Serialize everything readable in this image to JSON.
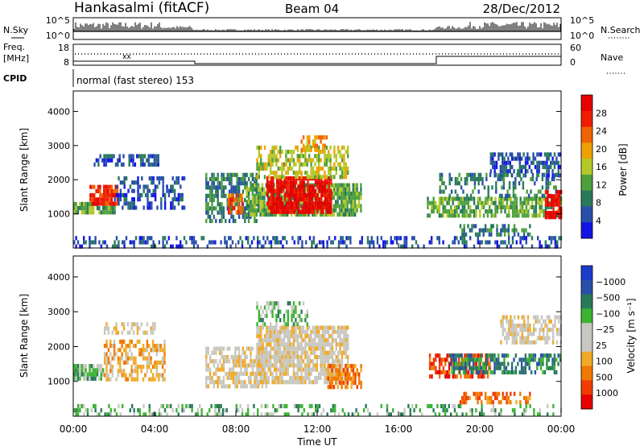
{
  "header": {
    "station": "Hankasalmi (fitACF)",
    "beam": "Beam 04",
    "date": "28/Dec/2012"
  },
  "strips": {
    "nsky_label": "N.Sky",
    "nsearch_label": "N.Search",
    "noise_ticks": [
      "10^5",
      "10^0"
    ],
    "freq_label": "Freq.",
    "freq_unit": "[MHz]",
    "freq_ticks": [
      "18",
      "8"
    ],
    "nave_label": "Nave",
    "nave_ticks": [
      "60",
      "0"
    ],
    "cpid_label": "CPID",
    "cpid_text": "normal (fast stereo) 153"
  },
  "colors": {
    "power": [
      "#1414e6",
      "#2850aa",
      "#287a5a",
      "#4ea03c",
      "#b4c828",
      "#f0a000",
      "#f06400",
      "#f01e00",
      "#e60000"
    ],
    "velocity": [
      "#e60000",
      "#f03c00",
      "#f07800",
      "#f0aa28",
      "#c8c8c0",
      "#c8c8c0",
      "#3cb432",
      "#2a7a5a",
      "#2850aa",
      "#1a3ccc"
    ]
  },
  "chart_data": [
    {
      "type": "heatmap",
      "panel": "power",
      "ylabel": "Slant Range [km]",
      "colorbar_label": "Power [dB]",
      "yticks": [
        "1000",
        "2000",
        "3000",
        "4000"
      ],
      "colorbar_ticks": [
        "4",
        "8",
        "12",
        "16",
        "20",
        "24",
        "28"
      ],
      "ylim": [
        0,
        4600
      ],
      "xlim_hours": [
        0,
        24
      ],
      "regions": [
        {
          "t": [
            0.0,
            2.0
          ],
          "r": [
            1050,
            1350
          ],
          "v": 3,
          "fill": 0.85
        },
        {
          "t": [
            0.8,
            2.2
          ],
          "r": [
            1350,
            1850
          ],
          "v": 7,
          "fill": 0.85
        },
        {
          "t": [
            2.0,
            5.5
          ],
          "r": [
            1200,
            2100
          ],
          "v": 1,
          "fill": 0.5
        },
        {
          "t": [
            1.0,
            4.2
          ],
          "r": [
            2400,
            2750
          ],
          "v": 1,
          "fill": 0.6
        },
        {
          "t": [
            6.5,
            9.0
          ],
          "r": [
            800,
            2200
          ],
          "v": 2,
          "fill": 0.7
        },
        {
          "t": [
            7.6,
            8.3
          ],
          "r": [
            1000,
            1600
          ],
          "v": 6,
          "fill": 0.8
        },
        {
          "t": [
            8.5,
            14.2
          ],
          "r": [
            1000,
            1900
          ],
          "v": 3,
          "fill": 0.8
        },
        {
          "t": [
            9.5,
            12.7
          ],
          "r": [
            1100,
            2100
          ],
          "v": 8,
          "fill": 0.85
        },
        {
          "t": [
            9.0,
            13.5
          ],
          "r": [
            2100,
            3000
          ],
          "v": 4,
          "fill": 0.6
        },
        {
          "t": [
            11.0,
            12.5
          ],
          "r": [
            2900,
            3300
          ],
          "v": 5,
          "fill": 0.5
        },
        {
          "t": [
            17.4,
            24.0
          ],
          "r": [
            1000,
            1500
          ],
          "v": 3,
          "fill": 0.7
        },
        {
          "t": [
            18.0,
            23.8
          ],
          "r": [
            1500,
            2200
          ],
          "v": 2,
          "fill": 0.4
        },
        {
          "t": [
            20.5,
            24.0
          ],
          "r": [
            2100,
            2800
          ],
          "v": 1,
          "fill": 0.6
        },
        {
          "t": [
            23.2,
            24.0
          ],
          "r": [
            900,
            1700
          ],
          "v": 8,
          "fill": 0.8
        },
        {
          "t": [
            19.0,
            22.5
          ],
          "r": [
            400,
            700
          ],
          "v": 2,
          "fill": 0.5
        },
        {
          "t": [
            0.0,
            24.0
          ],
          "r": [
            0,
            350
          ],
          "v": 1,
          "fill": 0.35
        }
      ]
    },
    {
      "type": "heatmap",
      "panel": "velocity",
      "xlabel": "Time UT",
      "ylabel": "Slant Range [km]",
      "colorbar_label": "Velocity [m s⁻¹]",
      "yticks": [
        "1000",
        "2000",
        "3000",
        "4000"
      ],
      "xticks": [
        "00:00",
        "04:00",
        "08:00",
        "12:00",
        "16:00",
        "20:00",
        "00:00"
      ],
      "colorbar_ticks": [
        "1000",
        "500",
        "100",
        "25",
        "−25",
        "−100",
        "−500",
        "−1000"
      ],
      "ylim": [
        0,
        4600
      ],
      "xlim_hours": [
        0,
        24
      ],
      "regions": [
        {
          "t": [
            0.0,
            1.5
          ],
          "r": [
            1100,
            1500
          ],
          "v": 6,
          "fill": 0.85
        },
        {
          "t": [
            1.5,
            4.5
          ],
          "r": [
            1000,
            2200
          ],
          "v": 3,
          "fill": 0.55
        },
        {
          "t": [
            1.5,
            4.0
          ],
          "r": [
            2450,
            2700
          ],
          "v": 4,
          "fill": 0.5
        },
        {
          "t": [
            6.5,
            9.5
          ],
          "r": [
            800,
            2000
          ],
          "v": 4,
          "fill": 0.7
        },
        {
          "t": [
            9.0,
            13.5
          ],
          "r": [
            1000,
            2600
          ],
          "v": 4,
          "fill": 0.85
        },
        {
          "t": [
            9.0,
            11.5
          ],
          "r": [
            2600,
            3300
          ],
          "v": 6,
          "fill": 0.5
        },
        {
          "t": [
            12.5,
            14.2
          ],
          "r": [
            800,
            1500
          ],
          "v": 2,
          "fill": 0.7
        },
        {
          "t": [
            17.5,
            20.5
          ],
          "r": [
            1100,
            1800
          ],
          "v": 1,
          "fill": 0.6
        },
        {
          "t": [
            18.5,
            24.0
          ],
          "r": [
            1200,
            1800
          ],
          "v": 7,
          "fill": 0.6
        },
        {
          "t": [
            21.0,
            24.0
          ],
          "r": [
            2100,
            2900
          ],
          "v": 4,
          "fill": 0.6
        },
        {
          "t": [
            19.0,
            22.5
          ],
          "r": [
            400,
            700
          ],
          "v": 2,
          "fill": 0.5
        },
        {
          "t": [
            0.0,
            24.0
          ],
          "r": [
            0,
            350
          ],
          "v": 6,
          "fill": 0.3
        }
      ]
    }
  ]
}
